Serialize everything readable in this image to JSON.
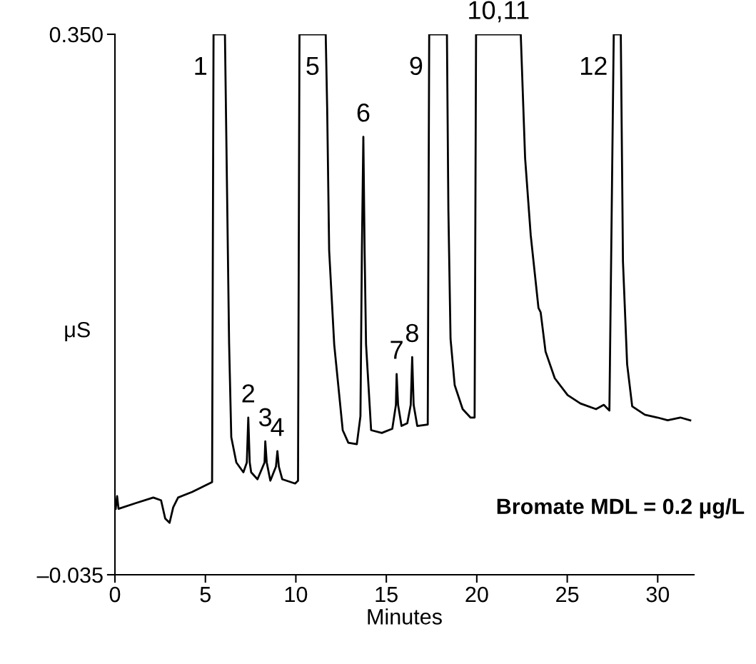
{
  "chart_data": {
    "type": "line",
    "xlabel": "Minutes",
    "ylabel": "μS",
    "x": [
      0.04,
      0.12,
      0.2,
      1.14,
      2.12,
      2.55,
      2.78,
      3.02,
      3.22,
      3.49,
      4.27,
      5.37,
      5.45,
      6.08,
      6.31,
      6.43,
      6.71,
      7.1,
      7.29,
      7.37,
      7.45,
      7.53,
      7.88,
      8.27,
      8.31,
      8.39,
      8.59,
      8.9,
      8.98,
      9.06,
      9.25,
      9.96,
      10.12,
      10.2,
      11.65,
      11.73,
      11.84,
      12.12,
      12.59,
      12.9,
      13.37,
      13.57,
      13.65,
      13.73,
      13.8,
      13.88,
      14.16,
      14.75,
      15.33,
      15.53,
      15.57,
      15.65,
      15.84,
      16.16,
      16.35,
      16.43,
      16.51,
      16.71,
      17.29,
      17.37,
      18.35,
      18.43,
      18.55,
      18.78,
      19.22,
      19.65,
      19.88,
      19.96,
      22.43,
      22.67,
      22.98,
      23.41,
      23.53,
      23.8,
      24.31,
      25.02,
      25.73,
      26.59,
      27.02,
      27.33,
      27.57,
      27.96,
      28.08,
      28.31,
      28.59,
      29.29,
      29.98,
      30.55,
      31.25,
      31.8
    ],
    "series": [
      {
        "color": "#000000",
        "values": [
          0.012,
          0.021,
          0.012,
          0.016,
          0.02,
          0.018,
          0.005,
          0.002,
          0.013,
          0.02,
          0.024,
          0.031,
          0.35,
          0.35,
          0.13,
          0.063,
          0.045,
          0.038,
          0.045,
          0.077,
          0.045,
          0.038,
          0.033,
          0.045,
          0.06,
          0.045,
          0.032,
          0.042,
          0.053,
          0.042,
          0.033,
          0.03,
          0.032,
          0.35,
          0.35,
          0.298,
          0.196,
          0.129,
          0.068,
          0.059,
          0.058,
          0.078,
          0.196,
          0.277,
          0.196,
          0.129,
          0.068,
          0.066,
          0.069,
          0.086,
          0.108,
          0.086,
          0.071,
          0.073,
          0.086,
          0.12,
          0.086,
          0.071,
          0.072,
          0.35,
          0.35,
          0.225,
          0.133,
          0.1,
          0.083,
          0.077,
          0.077,
          0.35,
          0.35,
          0.262,
          0.207,
          0.155,
          0.152,
          0.124,
          0.105,
          0.093,
          0.087,
          0.083,
          0.086,
          0.082,
          0.35,
          0.35,
          0.188,
          0.115,
          0.085,
          0.079,
          0.077,
          0.075,
          0.077,
          0.075
        ]
      }
    ],
    "xlim": [
      0,
      32
    ],
    "ylim": [
      -0.035,
      0.35
    ],
    "xticks": [
      0,
      5,
      10,
      15,
      20,
      25,
      30
    ],
    "yticks": [
      {
        "value": -0.035,
        "label": "–0.035"
      },
      {
        "value": 0.35,
        "label": "0.350"
      }
    ],
    "grid": false,
    "legend": false,
    "marker": "none",
    "line_style": "solid",
    "annotations": [
      {
        "text": "1",
        "x": 5.45,
        "y": 0.35
      },
      {
        "text": "2",
        "x": 7.37,
        "y": 0.077
      },
      {
        "text": "3",
        "x": 8.31,
        "y": 0.06
      },
      {
        "text": "4",
        "x": 8.98,
        "y": 0.053
      },
      {
        "text": "5",
        "x": 11.65,
        "y": 0.35
      },
      {
        "text": "6",
        "x": 13.73,
        "y": 0.277
      },
      {
        "text": "7",
        "x": 15.57,
        "y": 0.108
      },
      {
        "text": "8",
        "x": 16.43,
        "y": 0.12
      },
      {
        "text": "9",
        "x": 17.37,
        "y": 0.35
      },
      {
        "text": "10,11",
        "x": 21.2,
        "y": 0.35
      },
      {
        "text": "12",
        "x": 27.57,
        "y": 0.35
      },
      "Bromate MDL = 0.2 μg/L"
    ]
  }
}
